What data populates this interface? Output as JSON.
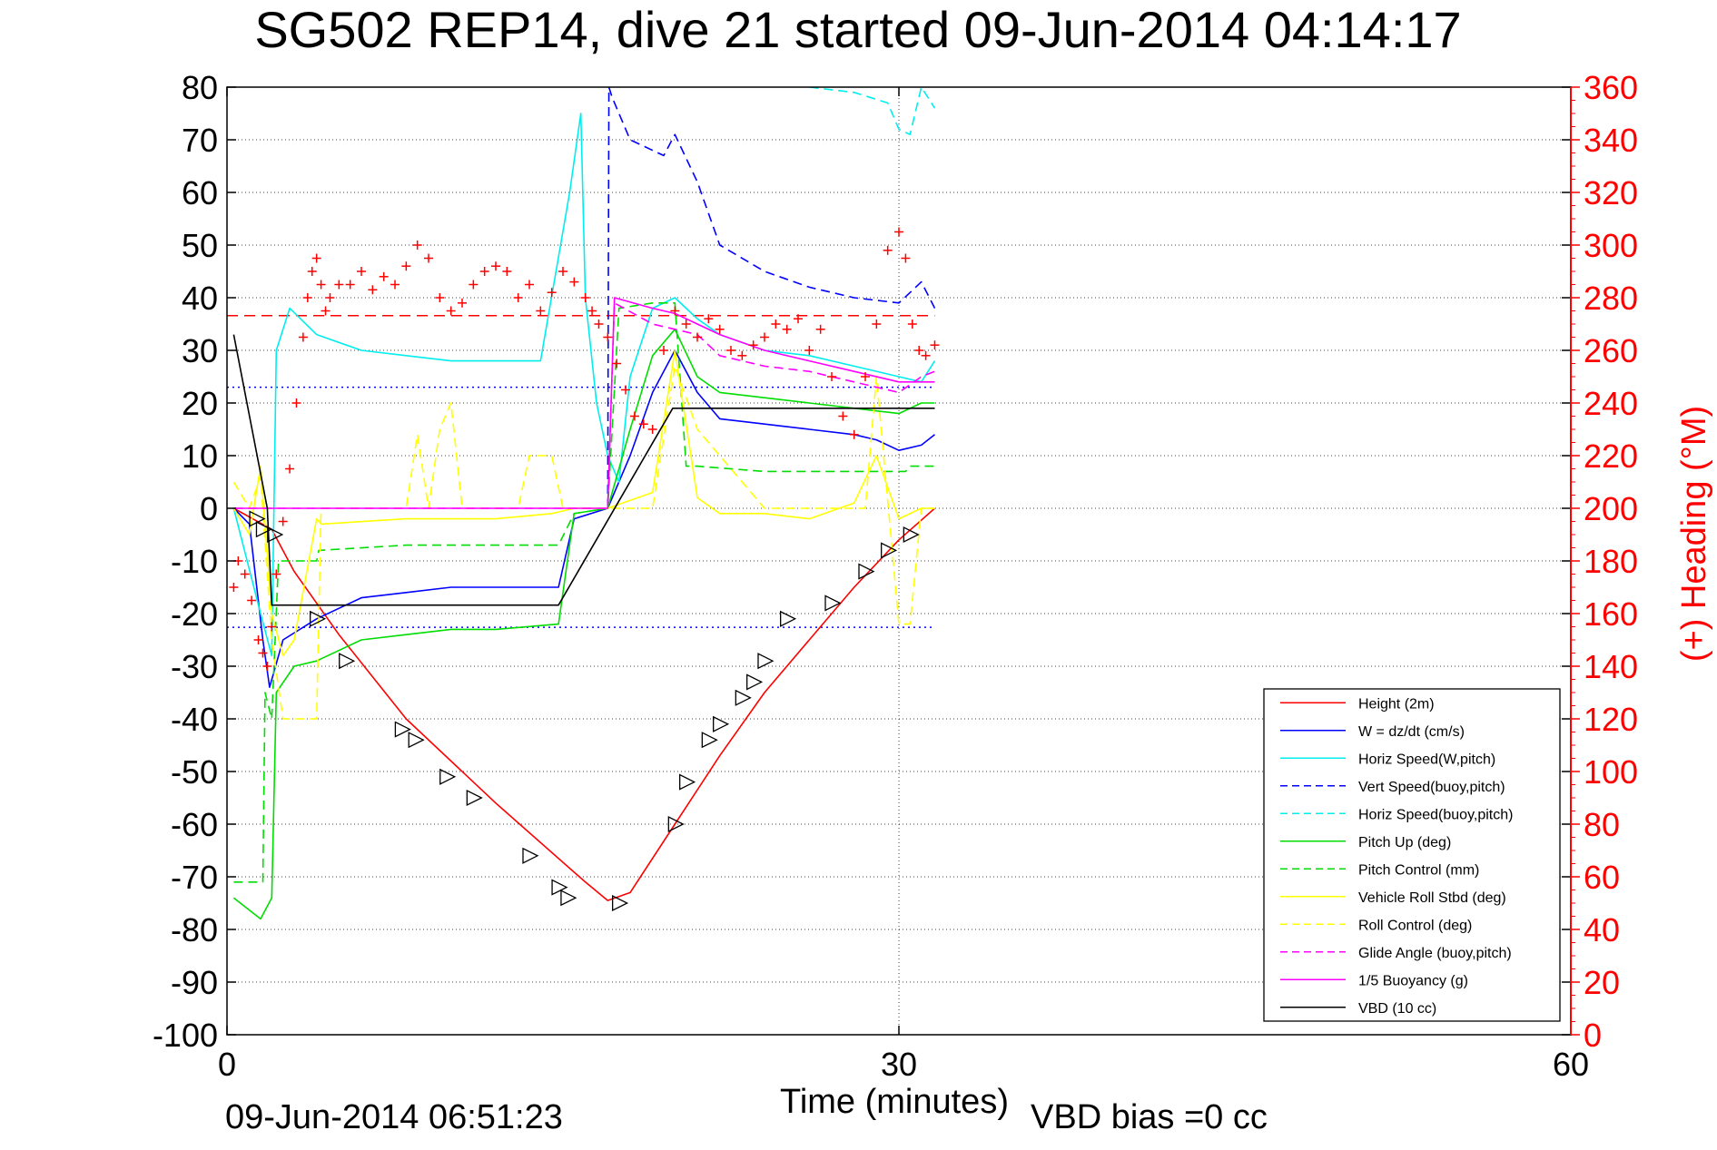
{
  "chart_data": {
    "type": "line",
    "title": "SG502 REP14, dive 21 started 09-Jun-2014 04:14:17",
    "xlabel": "Time (minutes)",
    "ylabel": "",
    "y2label": "(+) Heading (°M)",
    "xlim": [
      0,
      60
    ],
    "ylim": [
      -100,
      80
    ],
    "y2lim": [
      0,
      360
    ],
    "xticks": [
      "0",
      "30",
      "60"
    ],
    "yticks": [
      "80",
      "70",
      "60",
      "50",
      "40",
      "30",
      "20",
      "10",
      "0",
      "-10",
      "-20",
      "-30",
      "-40",
      "-50",
      "-60",
      "-70",
      "-80",
      "-90",
      "-100"
    ],
    "y2ticks": [
      "360",
      "340",
      "320",
      "300",
      "280",
      "260",
      "240",
      "220",
      "200",
      "180",
      "160",
      "140",
      "120",
      "100",
      "80",
      "60",
      "40",
      "20",
      "0"
    ],
    "footer_left": "09-Jun-2014 06:51:23",
    "footer_right": "VBD bias =0 cc",
    "grid": true,
    "legend_position": "bottom-right",
    "colors": {
      "height": "#ff0000",
      "w": "#0000ff",
      "horiz_speed": "#00eeee",
      "vert_speed": "#0000ff",
      "pitch": "#00dd00",
      "roll": "#ffff00",
      "glide": "#ff00ff",
      "vbd": "#000000",
      "heading": "#ff0000"
    },
    "series": [
      {
        "name": "Height (2m)",
        "color": "#ff0000",
        "dash": false,
        "x": [
          0.3,
          2,
          3,
          5,
          8,
          12,
          16,
          17,
          18,
          20,
          22,
          24,
          26,
          28,
          30,
          31.6
        ],
        "y": [
          0,
          -4,
          -12,
          -24,
          -40,
          -56,
          -71,
          -74.5,
          -73,
          -60,
          -47,
          -35,
          -25,
          -15,
          -6,
          0
        ]
      },
      {
        "name": "W = dz/dt (cm/s)",
        "color": "#0000ff",
        "dash": false,
        "x": [
          0.3,
          1,
          1.6,
          1.9,
          2.5,
          4,
          6,
          8,
          10,
          12,
          14.8,
          15.5,
          17,
          18,
          19,
          20,
          21,
          22,
          24,
          26,
          28,
          29,
          30,
          31,
          31.6
        ],
        "y": [
          0,
          -3,
          -25,
          -34,
          -25,
          -21,
          -17,
          -16,
          -15,
          -15,
          -15,
          -2,
          0,
          10,
          22,
          30,
          22,
          17,
          16,
          15,
          14,
          13,
          11,
          12,
          14
        ]
      },
      {
        "name": "Horiz Speed(W,pitch)",
        "color": "#00eeee",
        "dash": false,
        "x": [
          0.3,
          1.5,
          2,
          2.2,
          2.8,
          4,
          6,
          8,
          10,
          12,
          14,
          15.3,
          15.8,
          16,
          16.5,
          17,
          17.5,
          18,
          19,
          20,
          21,
          22,
          24,
          26,
          28,
          30,
          31,
          31.6
        ],
        "y": [
          0,
          -20,
          -28,
          30,
          38,
          33,
          30,
          29,
          28,
          28,
          28,
          60,
          75,
          40,
          20,
          10,
          5,
          25,
          38,
          40,
          36,
          33,
          30,
          29,
          27,
          25,
          24,
          28
        ]
      },
      {
        "name": "Vert Speed(buoy,pitch)",
        "color": "#0000ff",
        "dash": true,
        "x": [
          17,
          17.05,
          17.2,
          18,
          19.5,
          20,
          21,
          22,
          24,
          26,
          28,
          30,
          31,
          31.6
        ],
        "y": [
          0,
          80,
          78,
          70,
          67,
          71,
          62,
          50,
          45,
          42,
          40,
          39,
          43,
          38
        ]
      },
      {
        "name": "Horiz Speed(buoy,pitch)",
        "color": "#00eeee",
        "dash": true,
        "x": [
          26,
          28,
          29.5,
          30,
          30.5,
          31,
          31.6
        ],
        "y": [
          80,
          79,
          77,
          72,
          71,
          80,
          76
        ]
      },
      {
        "name": "Pitch Up (deg)",
        "color": "#00dd00",
        "dash": false,
        "x": [
          0.3,
          1.5,
          2,
          2.2,
          3,
          4,
          6,
          8,
          10,
          12,
          14.8,
          15.5,
          17,
          18,
          19,
          20,
          21,
          22,
          24,
          26,
          28,
          30,
          31,
          31.6
        ],
        "y": [
          -74,
          -78,
          -74,
          -35,
          -30,
          -29,
          -25,
          -24,
          -23,
          -23,
          -22,
          -1,
          0,
          15,
          29,
          34,
          25,
          22,
          21,
          20,
          19,
          18,
          20,
          20
        ]
      },
      {
        "name": "Pitch Control (mm)",
        "color": "#00dd00",
        "dash": true,
        "x": [
          0.3,
          1.6,
          1.7,
          2,
          2.3,
          4,
          4.1,
          8,
          12,
          14.8,
          15.5,
          17,
          17.5,
          19,
          20,
          20.5,
          21,
          24,
          28,
          30.3,
          30.5,
          31.6
        ],
        "y": [
          -71,
          -71,
          -35,
          -40,
          -10,
          -10,
          -8,
          -7,
          -7,
          -7,
          -1,
          0,
          38,
          39,
          39,
          8,
          8,
          7,
          7,
          7,
          8,
          8
        ]
      },
      {
        "name": "Vehicle Roll Stbd (deg)",
        "color": "#ffff00",
        "dash": false,
        "x": [
          0.3,
          1,
          1.5,
          2,
          2.5,
          3,
          4,
          4.2,
          8,
          12,
          14.5,
          15.5,
          17,
          19,
          20,
          21,
          22,
          24,
          26,
          28,
          29,
          30,
          31,
          31.6
        ],
        "y": [
          0,
          -5,
          8,
          -20,
          -28,
          -25,
          -2,
          -3,
          -2,
          -2,
          -1,
          0,
          0,
          3,
          30,
          2,
          -1,
          -1,
          -2,
          1,
          10,
          -2,
          0,
          0
        ]
      },
      {
        "name": "Roll Control (deg)",
        "color": "#ffff00",
        "dash": true,
        "x": [
          0.3,
          1,
          1.5,
          2,
          2.5,
          4,
          4.2,
          8,
          8.5,
          9,
          9.5,
          10,
          10.5,
          11,
          13,
          13.5,
          14.5,
          15,
          17,
          19,
          20,
          21,
          22,
          24,
          26,
          28.5,
          29,
          30,
          30.5,
          31,
          31.6
        ],
        "y": [
          5,
          0,
          6,
          -25,
          -40,
          -40,
          0,
          0,
          14,
          0,
          15,
          20,
          0,
          0,
          0,
          10,
          10,
          0,
          0,
          0,
          27,
          15,
          10,
          0,
          0,
          0,
          25,
          -22,
          -22,
          0,
          0
        ]
      },
      {
        "name": "Glide Angle (buoy,pitch)",
        "color": "#ff00ff",
        "dash": true,
        "x": [
          0.3,
          17,
          17.3,
          19,
          20,
          21,
          22,
          24,
          26,
          28,
          30,
          31,
          31.6
        ],
        "y": [
          0,
          0,
          39,
          35,
          34,
          33,
          29,
          27,
          26,
          24,
          22,
          25,
          26
        ]
      },
      {
        "name": "1/5 Buoyancy (g)",
        "color": "#ff00ff",
        "dash": false,
        "x": [
          0.3,
          17,
          17.3,
          19,
          20,
          22,
          24,
          26,
          28,
          30,
          31.6
        ],
        "y": [
          0,
          0,
          40,
          38,
          37,
          33,
          30,
          28,
          26,
          24,
          24
        ]
      },
      {
        "name": "VBD (10 cc)",
        "color": "#000000",
        "dash": false,
        "x": [
          0.3,
          1.8,
          2,
          14.8,
          19.9,
          31.6
        ],
        "y": [
          33,
          0,
          -18.4,
          -18.4,
          19,
          19
        ]
      }
    ],
    "reference_lines": [
      {
        "color": "#ff0000",
        "dash": true,
        "y": 36.6
      },
      {
        "color": "#0000ff",
        "dash": "dotted",
        "y": 23
      },
      {
        "color": "#0000ff",
        "dash": "dotted",
        "y": -22.6
      }
    ],
    "heading_points": {
      "name": "Heading",
      "axis": "right",
      "color": "#ff0000",
      "marker": "+",
      "x": [
        0.3,
        0.5,
        0.8,
        1.1,
        1.4,
        1.6,
        1.8,
        2.0,
        2.2,
        2.5,
        2.8,
        3.1,
        3.4,
        3.6,
        3.8,
        4.0,
        4.2,
        4.4,
        4.6,
        5,
        5.5,
        6,
        6.5,
        7,
        7.5,
        8,
        8.5,
        9,
        9.5,
        10,
        10.5,
        11,
        11.5,
        12,
        12.5,
        13,
        13.5,
        14,
        14.5,
        15,
        15.5,
        16,
        16.3,
        16.6,
        17,
        17.4,
        17.8,
        18.2,
        18.6,
        19,
        19.5,
        20,
        20.5,
        21,
        21.5,
        22,
        22.5,
        23,
        23.5,
        24,
        24.5,
        25,
        25.5,
        26,
        26.5,
        27,
        27.5,
        28,
        28.5,
        29,
        29.5,
        30,
        30.3,
        30.6,
        30.9,
        31.2,
        31.6
      ],
      "y": [
        170,
        180,
        175,
        165,
        150,
        145,
        140,
        155,
        175,
        195,
        215,
        240,
        265,
        280,
        290,
        295,
        285,
        275,
        280,
        285,
        285,
        290,
        283,
        288,
        285,
        292,
        300,
        295,
        280,
        275,
        278,
        285,
        290,
        292,
        290,
        280,
        285,
        275,
        282,
        290,
        286,
        280,
        275,
        270,
        265,
        255,
        245,
        235,
        232,
        230,
        260,
        275,
        270,
        265,
        272,
        268,
        260,
        258,
        262,
        265,
        270,
        268,
        272,
        260,
        268,
        250,
        235,
        228,
        250,
        270,
        298,
        305,
        295,
        270,
        260,
        258,
        262
      ]
    },
    "transition_markers": {
      "marker": "triangle",
      "x": [
        1.3,
        1.6,
        2.1,
        4,
        5.3,
        7.8,
        8.4,
        9.8,
        11,
        13.5,
        14.8,
        15.2,
        17.5,
        20,
        20.5,
        21.5,
        22,
        23,
        23.5,
        24,
        25,
        27,
        28.5,
        29.5,
        30.5
      ],
      "y": [
        -2,
        -4,
        -5,
        -21,
        -29,
        -42,
        -44,
        -51,
        -55,
        -66,
        -72,
        -74,
        -75,
        -60,
        -52,
        -44,
        -41,
        -36,
        -33,
        -29,
        -21,
        -18,
        -12,
        -8,
        -5
      ]
    }
  }
}
